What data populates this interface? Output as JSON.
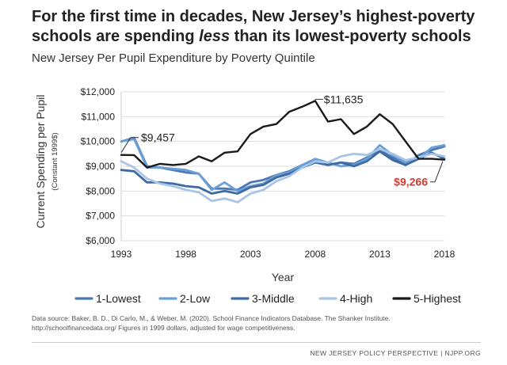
{
  "header": {
    "title_line1": "For the first time in decades, New Jersey’s highest-poverty",
    "title_line2_pre": "schools are spending ",
    "title_line2_em": "less",
    "title_line2_post": " than its lowest-poverty schools",
    "subtitle": "New Jersey Per Pupil Expenditure by Poverty Quintile"
  },
  "source": {
    "line1": "Data source: Baker, B. D., Di Carlo, M., & Weber, M. (2020). School Finance Indicators Database. The Shanker Institute.",
    "line2": "http://schoolfinancedata.org/  Figures in 1999 dollars, adjusted for wage competitiveness."
  },
  "footer": "NEW JERSEY POLICY PERSPECTIVE | NJPP.ORG",
  "colors": {
    "lowest": "#4a78b4",
    "low": "#6b9fd8",
    "middle": "#3f6aa3",
    "high": "#a8c4e6",
    "highest": "#1a1a1a",
    "red": "#d63a2e",
    "grid": "#dddddd"
  },
  "chart_data": {
    "type": "line",
    "ylabel": "Current Spending per Pupil",
    "ylabel_sub": "(Constant 1999$)",
    "xlabel": "Year",
    "ylim": [
      6000,
      12000
    ],
    "xlim": [
      1993,
      2018
    ],
    "x_ticks": [
      1993,
      1998,
      2003,
      2008,
      2013,
      2018
    ],
    "y_ticks": [
      6000,
      7000,
      8000,
      9000,
      10000,
      11000,
      12000
    ],
    "y_tick_labels": [
      "$6,000",
      "$7,000",
      "$8,000",
      "$9,000",
      "$10,000",
      "$11,000",
      "$12,000"
    ],
    "x": [
      1993,
      1994,
      1995,
      1996,
      1997,
      1998,
      1999,
      2000,
      2001,
      2002,
      2003,
      2004,
      2005,
      2006,
      2007,
      2008,
      2009,
      2010,
      2011,
      2012,
      2013,
      2014,
      2015,
      2016,
      2017,
      2018
    ],
    "series": [
      {
        "name": "1-Lowest",
        "color": "#4a78b4",
        "values": [
          10000,
          10150,
          9000,
          8950,
          8850,
          8750,
          8700,
          8100,
          8100,
          8050,
          8350,
          8450,
          8650,
          8800,
          9050,
          9250,
          9050,
          9150,
          9100,
          9350,
          9650,
          9350,
          9050,
          9450,
          9650,
          9800
        ]
      },
      {
        "name": "2-Low",
        "color": "#6b9fd8",
        "values": [
          10000,
          10100,
          8950,
          8950,
          8900,
          8850,
          8700,
          8050,
          8350,
          8000,
          8200,
          8300,
          8650,
          8750,
          9050,
          9300,
          9150,
          9000,
          9050,
          9300,
          9850,
          9450,
          9150,
          9300,
          9750,
          9850
        ]
      },
      {
        "name": "3-Middle",
        "color": "#3f6aa3",
        "values": [
          8850,
          8800,
          8350,
          8350,
          8300,
          8200,
          8150,
          7900,
          8000,
          7900,
          8150,
          8250,
          8550,
          8700,
          8950,
          9150,
          9050,
          9150,
          9000,
          9200,
          9600,
          9250,
          9050,
          9300,
          9550,
          9300
        ]
      },
      {
        "name": "4-High",
        "color": "#a8c4e6",
        "values": [
          9200,
          8950,
          8500,
          8300,
          8200,
          8050,
          7950,
          7600,
          7700,
          7550,
          7900,
          8050,
          8400,
          8600,
          8950,
          9200,
          9150,
          9400,
          9500,
          9450,
          9700,
          9500,
          9250,
          9350,
          9500,
          9400
        ]
      },
      {
        "name": "5-Highest",
        "color": "#1a1a1a",
        "values": [
          9457,
          9450,
          8950,
          9100,
          9050,
          9100,
          9400,
          9200,
          9550,
          9600,
          10300,
          10600,
          10700,
          11200,
          11400,
          11635,
          10800,
          10900,
          10300,
          10600,
          11100,
          10700,
          10000,
          9300,
          9300,
          9266
        ]
      }
    ],
    "annotations": {
      "first_label": "$9,457",
      "peak_label": "$11,635",
      "last_label": "$9,266"
    }
  }
}
